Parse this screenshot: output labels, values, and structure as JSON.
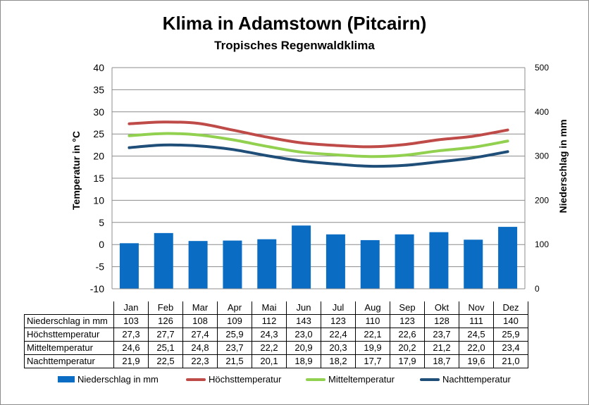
{
  "title": "Klima in Adamstown (Pitcairn)",
  "subtitle": "Tropisches Regenwaldklima",
  "colors": {
    "precip": "#0a6cc2",
    "max": "#be4b48",
    "mean": "#92d050",
    "min": "#1f4e79"
  },
  "chart_data": {
    "type": "bar",
    "categories": [
      "Jan",
      "Feb",
      "Mar",
      "Apr",
      "Mai",
      "Jun",
      "Jul",
      "Aug",
      "Sep",
      "Okt",
      "Nov",
      "Dez"
    ],
    "y_left": {
      "label": "Temperatur in °C",
      "min": -10,
      "max": 40,
      "ticks": [
        "-10",
        "-5",
        "0",
        "5",
        "10",
        "15",
        "20",
        "25",
        "30",
        "35",
        "40"
      ]
    },
    "y_right": {
      "label": "Niederschlag in mm",
      "min": 0,
      "max": 500,
      "ticks": [
        "0",
        "100",
        "200",
        "300",
        "400",
        "500"
      ]
    },
    "grid": true,
    "legend_position": "bottom",
    "series": [
      {
        "name": "Niederschlag in mm",
        "type": "bar",
        "axis": "right",
        "values": [
          103,
          126,
          108,
          109,
          112,
          143,
          123,
          110,
          123,
          128,
          111,
          140
        ],
        "display": [
          "103",
          "126",
          "108",
          "109",
          "112",
          "143",
          "123",
          "110",
          "123",
          "128",
          "111",
          "140"
        ]
      },
      {
        "name": "Höchsttemperatur",
        "type": "line",
        "axis": "left",
        "values": [
          27.3,
          27.7,
          27.4,
          25.9,
          24.3,
          23.0,
          22.4,
          22.1,
          22.6,
          23.7,
          24.5,
          25.9
        ],
        "display": [
          "27,3",
          "27,7",
          "27,4",
          "25,9",
          "24,3",
          "23,0",
          "22,4",
          "22,1",
          "22,6",
          "23,7",
          "24,5",
          "25,9"
        ]
      },
      {
        "name": "Mitteltemperatur",
        "type": "line",
        "axis": "left",
        "values": [
          24.6,
          25.1,
          24.8,
          23.7,
          22.2,
          20.9,
          20.3,
          19.9,
          20.2,
          21.2,
          22.0,
          23.4
        ],
        "display": [
          "24,6",
          "25,1",
          "24,8",
          "23,7",
          "22,2",
          "20,9",
          "20,3",
          "19,9",
          "20,2",
          "21,2",
          "22,0",
          "23,4"
        ]
      },
      {
        "name": "Nachttemperatur",
        "type": "line",
        "axis": "left",
        "values": [
          21.9,
          22.5,
          22.3,
          21.5,
          20.1,
          18.9,
          18.2,
          17.7,
          17.9,
          18.7,
          19.6,
          21.0
        ],
        "display": [
          "21,9",
          "22,5",
          "22,3",
          "21,5",
          "20,1",
          "18,9",
          "18,2",
          "17,7",
          "17,9",
          "18,7",
          "19,6",
          "21,0"
        ]
      }
    ]
  }
}
